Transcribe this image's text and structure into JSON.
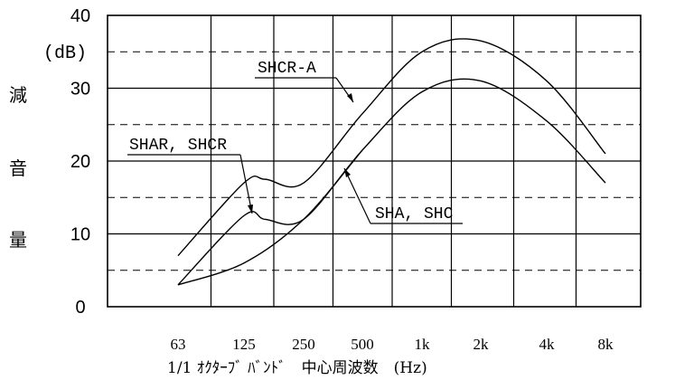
{
  "chart_data": {
    "type": "line",
    "xlabel": "1/1 ｵｸﾀｰﾌﾞ ﾊﾞﾝﾄﾞ　中心周波数　(Hz)",
    "ylabel_chars": [
      "減",
      "音",
      "量"
    ],
    "y_unit": "(dB)",
    "ylim": [
      0,
      40
    ],
    "y_ticks": [
      "0",
      "10",
      "20",
      "30",
      "40"
    ],
    "x_categories": [
      "63",
      "125",
      "250",
      "500",
      "1k",
      "2k",
      "4k",
      "8k"
    ],
    "grid": "solid at 10 dB steps, dashed at 5 dB offsets",
    "series": [
      {
        "name": "SHCR-A",
        "x": [
          63,
          125,
          160,
          250,
          500,
          1000,
          2000,
          4000,
          8000
        ],
        "y": [
          7,
          17,
          17.5,
          17,
          26.5,
          35,
          36.5,
          31,
          21
        ]
      },
      {
        "name": "SHAR, SHCR",
        "x": [
          63,
          125,
          160,
          250,
          500,
          1000,
          2000,
          4000,
          8000
        ],
        "y": [
          3,
          12.5,
          12,
          12,
          21.5,
          29.5,
          31,
          25.5,
          17
        ]
      },
      {
        "name": "SHA, SHC",
        "x": [
          63,
          125,
          250,
          500
        ],
        "y": [
          3,
          6,
          12,
          21.5
        ]
      }
    ],
    "annotations": [
      "SHCR-A",
      "SHAR, SHCR",
      "SHA, SHC"
    ]
  }
}
